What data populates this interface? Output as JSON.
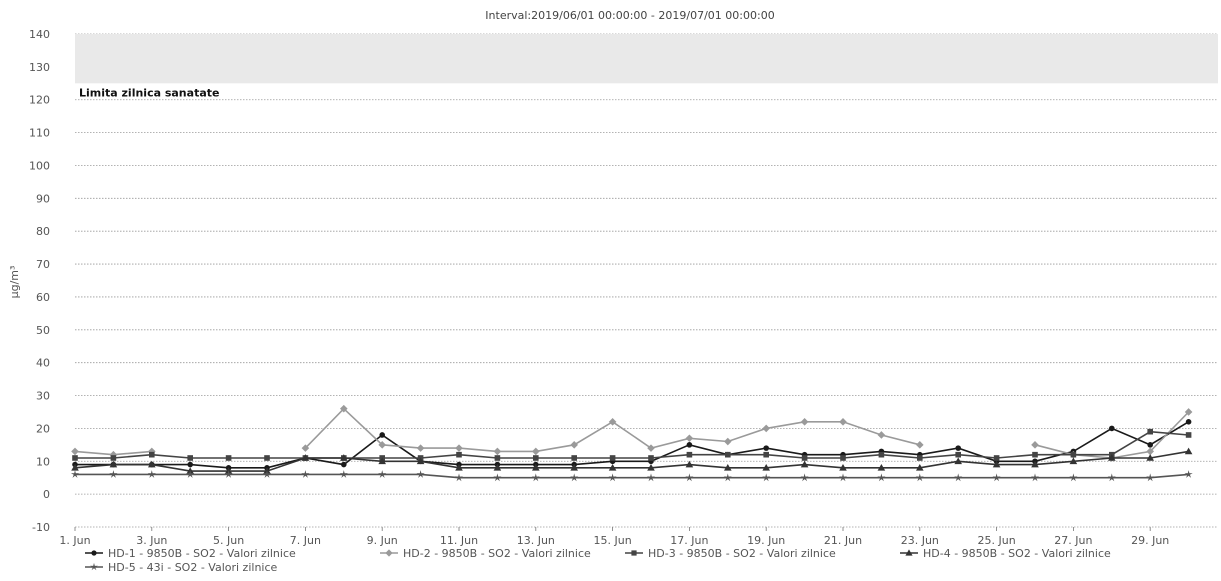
{
  "chart_data": {
    "type": "line",
    "title": "Interval:2019/06/01 00:00:00 - 2019/07/01 00:00:00",
    "ylabel": "µg/m³",
    "ylim": [
      -10,
      140
    ],
    "yticks": [
      -10,
      0,
      10,
      20,
      30,
      40,
      50,
      60,
      70,
      80,
      90,
      100,
      110,
      120,
      130,
      140
    ],
    "x": [
      "1. Jun",
      "2. Jun",
      "3. Jun",
      "4. Jun",
      "5. Jun",
      "6. Jun",
      "7. Jun",
      "8. Jun",
      "9. Jun",
      "10. Jun",
      "11. Jun",
      "12. Jun",
      "13. Jun",
      "14. Jun",
      "15. Jun",
      "16. Jun",
      "17. Jun",
      "18. Jun",
      "19. Jun",
      "20. Jun",
      "21. Jun",
      "22. Jun",
      "23. Jun",
      "24. Jun",
      "25. Jun",
      "26. Jun",
      "27. Jun",
      "28. Jun",
      "29. Jun",
      "30. Jun"
    ],
    "xtick_labels": [
      "1. Jun",
      "3. Jun",
      "5. Jun",
      "7. Jun",
      "9. Jun",
      "11. Jun",
      "13. Jun",
      "15. Jun",
      "17. Jun",
      "19. Jun",
      "21. Jun",
      "23. Jun",
      "25. Jun",
      "27. Jun",
      "29. Jun"
    ],
    "threshold": {
      "label": "Limita zilnica sanatate",
      "from": 125,
      "to": 140,
      "color": "#e9e9e9"
    },
    "grid": true,
    "legend_position": "bottom",
    "series": [
      {
        "name": "HD-1 - 9850B - SO2 - Valori zilnice",
        "marker": "circle",
        "color": "#1a1a1a",
        "values": [
          9,
          9,
          9,
          9,
          8,
          8,
          11,
          9,
          18,
          10,
          9,
          9,
          9,
          9,
          10,
          10,
          15,
          12,
          14,
          12,
          12,
          13,
          12,
          14,
          10,
          10,
          13,
          20,
          15,
          22
        ]
      },
      {
        "name": "HD-2 - 9850B - SO2 - Valori zilnice",
        "marker": "diamond",
        "color": "#9a9a9a",
        "values": [
          13,
          12,
          13,
          null,
          null,
          null,
          14,
          26,
          15,
          14,
          14,
          13,
          13,
          15,
          22,
          14,
          17,
          16,
          20,
          22,
          22,
          18,
          15,
          null,
          null,
          15,
          12,
          11,
          13,
          25
        ]
      },
      {
        "name": "HD-3 - 9850B - SO2 - Valori zilnice",
        "marker": "square",
        "color": "#444444",
        "values": [
          11,
          11,
          12,
          11,
          11,
          11,
          11,
          11,
          11,
          11,
          12,
          11,
          11,
          11,
          11,
          11,
          12,
          12,
          12,
          11,
          11,
          12,
          11,
          12,
          11,
          12,
          12,
          12,
          19,
          18
        ]
      },
      {
        "name": "HD-4 - 9850B - SO2 - Valori zilnice",
        "marker": "triangle",
        "color": "#333333",
        "values": [
          8,
          9,
          9,
          7,
          7,
          7,
          11,
          11,
          10,
          10,
          8,
          8,
          8,
          8,
          8,
          8,
          9,
          8,
          8,
          9,
          8,
          8,
          8,
          10,
          9,
          9,
          10,
          11,
          11,
          13
        ]
      },
      {
        "name": "HD-5 - 43i - SO2 - Valori zilnice",
        "marker": "star",
        "color": "#555555",
        "values": [
          6,
          6,
          6,
          6,
          6,
          6,
          6,
          6,
          6,
          6,
          5,
          5,
          5,
          5,
          5,
          5,
          5,
          5,
          5,
          5,
          5,
          5,
          5,
          5,
          5,
          5,
          5,
          5,
          5,
          6
        ]
      }
    ]
  }
}
